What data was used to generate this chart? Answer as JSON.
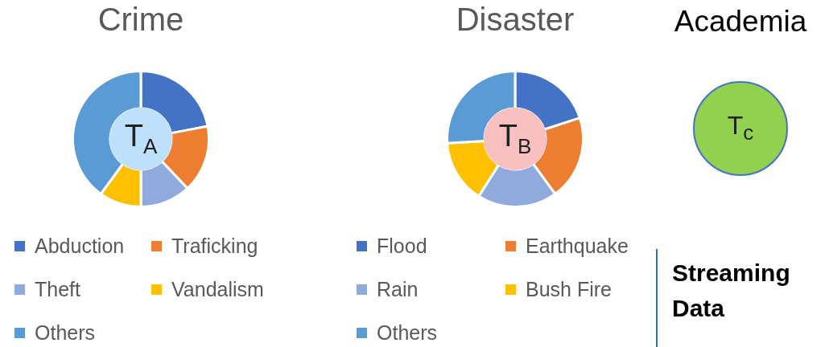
{
  "chart_data": [
    {
      "type": "donut",
      "title": "Crime",
      "categories": [
        "Abduction",
        "Traficking",
        "Theft",
        "Vandalism",
        "Others"
      ],
      "values": [
        22,
        16,
        12,
        10,
        40
      ],
      "colors": [
        "#4472c4",
        "#ed7d31",
        "#8faadc",
        "#ffc000",
        "#5b9bd5"
      ],
      "annotations": [
        "T$_{A}$"
      ],
      "legend": "bottom"
    },
    {
      "type": "donut",
      "title": "Disaster",
      "categories": [
        "Flood",
        "Earthquake",
        "Rain",
        "Bush Fire",
        "Others"
      ],
      "values": [
        20,
        20,
        19,
        15,
        26
      ],
      "colors": [
        "#4472c4",
        "#ed7d31",
        "#8faadc",
        "#ffc000",
        "#5b9bd5"
      ],
      "annotations": [
        "T$_{B}$"
      ],
      "legend": "bottom"
    },
    {
      "type": "other",
      "title": "Academia",
      "annotations": [
        "T$_{c}$",
        "Streaming Data"
      ]
    }
  ]
}
